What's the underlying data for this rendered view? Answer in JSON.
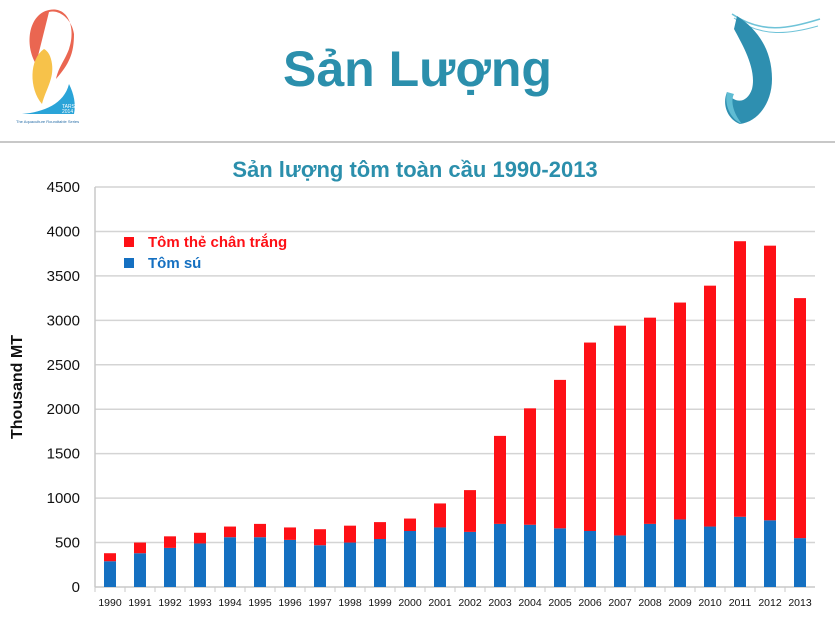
{
  "slide": {
    "title": "Sản Lượng",
    "logo_left": {
      "text_line1": "TARS",
      "text_line2": "2014",
      "tagline": "The Aquaculture Roundtable Series"
    },
    "logo_right": {
      "icon": "shrimp-logo"
    }
  },
  "colors": {
    "title": "#2b8fac",
    "red_series": "#fe1016",
    "blue_series": "#1570c1",
    "grid": "#d4d4d4"
  },
  "chart_data": {
    "type": "bar",
    "stacked": true,
    "title": "Sản lượng tôm toàn cầu 1990-2013",
    "xlabel": "",
    "ylabel": "Thousand MT",
    "ylim": [
      0,
      4500
    ],
    "yticks": [
      0,
      500,
      1000,
      1500,
      2000,
      2500,
      3000,
      3500,
      4000,
      4500
    ],
    "grid": true,
    "legend_position": "top-left",
    "categories": [
      "1990",
      "1991",
      "1992",
      "1993",
      "1994",
      "1995",
      "1996",
      "1997",
      "1998",
      "1999",
      "2000",
      "2001",
      "2002",
      "2003",
      "2004",
      "2005",
      "2006",
      "2007",
      "2008",
      "2009",
      "2010",
      "2011",
      "2012",
      "2013"
    ],
    "series": [
      {
        "name": "Tôm sú",
        "color": "#1570c1",
        "values": [
          290,
          380,
          440,
          490,
          560,
          560,
          530,
          470,
          500,
          540,
          630,
          670,
          620,
          710,
          700,
          660,
          630,
          580,
          710,
          760,
          680,
          790,
          750,
          550
        ]
      },
      {
        "name": "Tôm thẻ chân trắng",
        "color": "#fe1016",
        "values": [
          90,
          120,
          130,
          120,
          120,
          150,
          140,
          180,
          190,
          190,
          140,
          270,
          470,
          990,
          1310,
          1670,
          2120,
          2360,
          2320,
          2440,
          2710,
          3100,
          3090,
          2700
        ]
      }
    ]
  }
}
